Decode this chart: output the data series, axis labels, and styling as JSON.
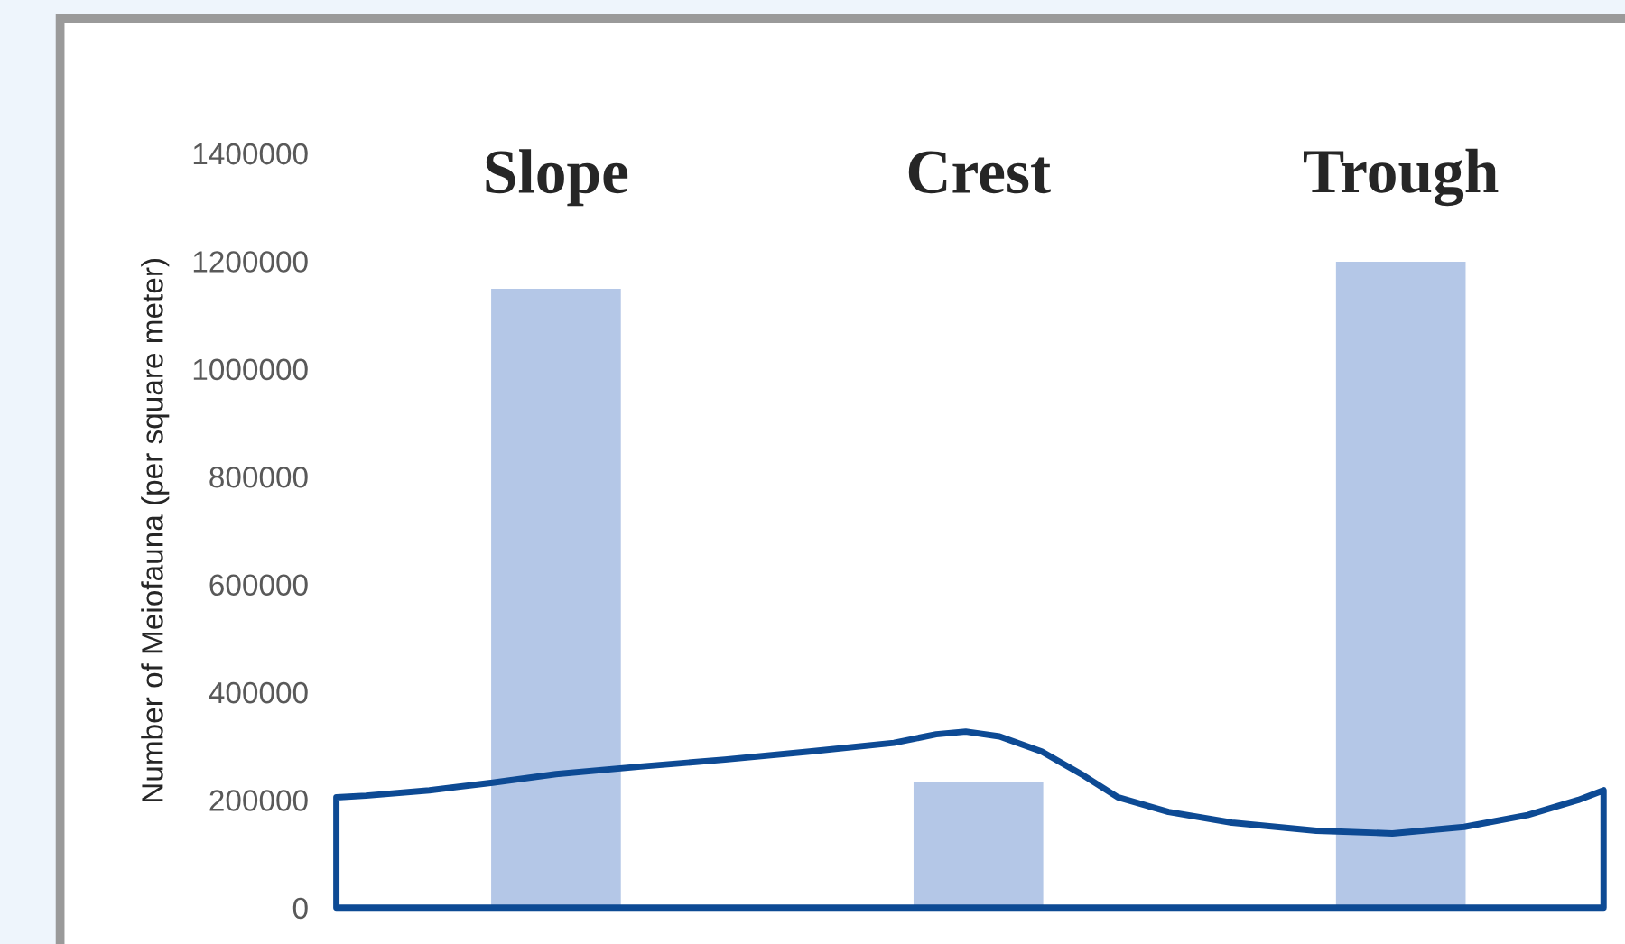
{
  "chart_data": {
    "type": "bar",
    "ylabel": "Number of Meiofauna (per square meter)",
    "categories": [
      "Slope",
      "Crest",
      "Trough"
    ],
    "values": [
      1150000,
      235000,
      1200000
    ],
    "color": "#b4c7e7",
    "ylim": [
      0,
      1400000
    ],
    "yticks": [
      0,
      200000,
      400000,
      600000,
      800000,
      1000000,
      1200000,
      1400000
    ],
    "grid": false
  }
}
